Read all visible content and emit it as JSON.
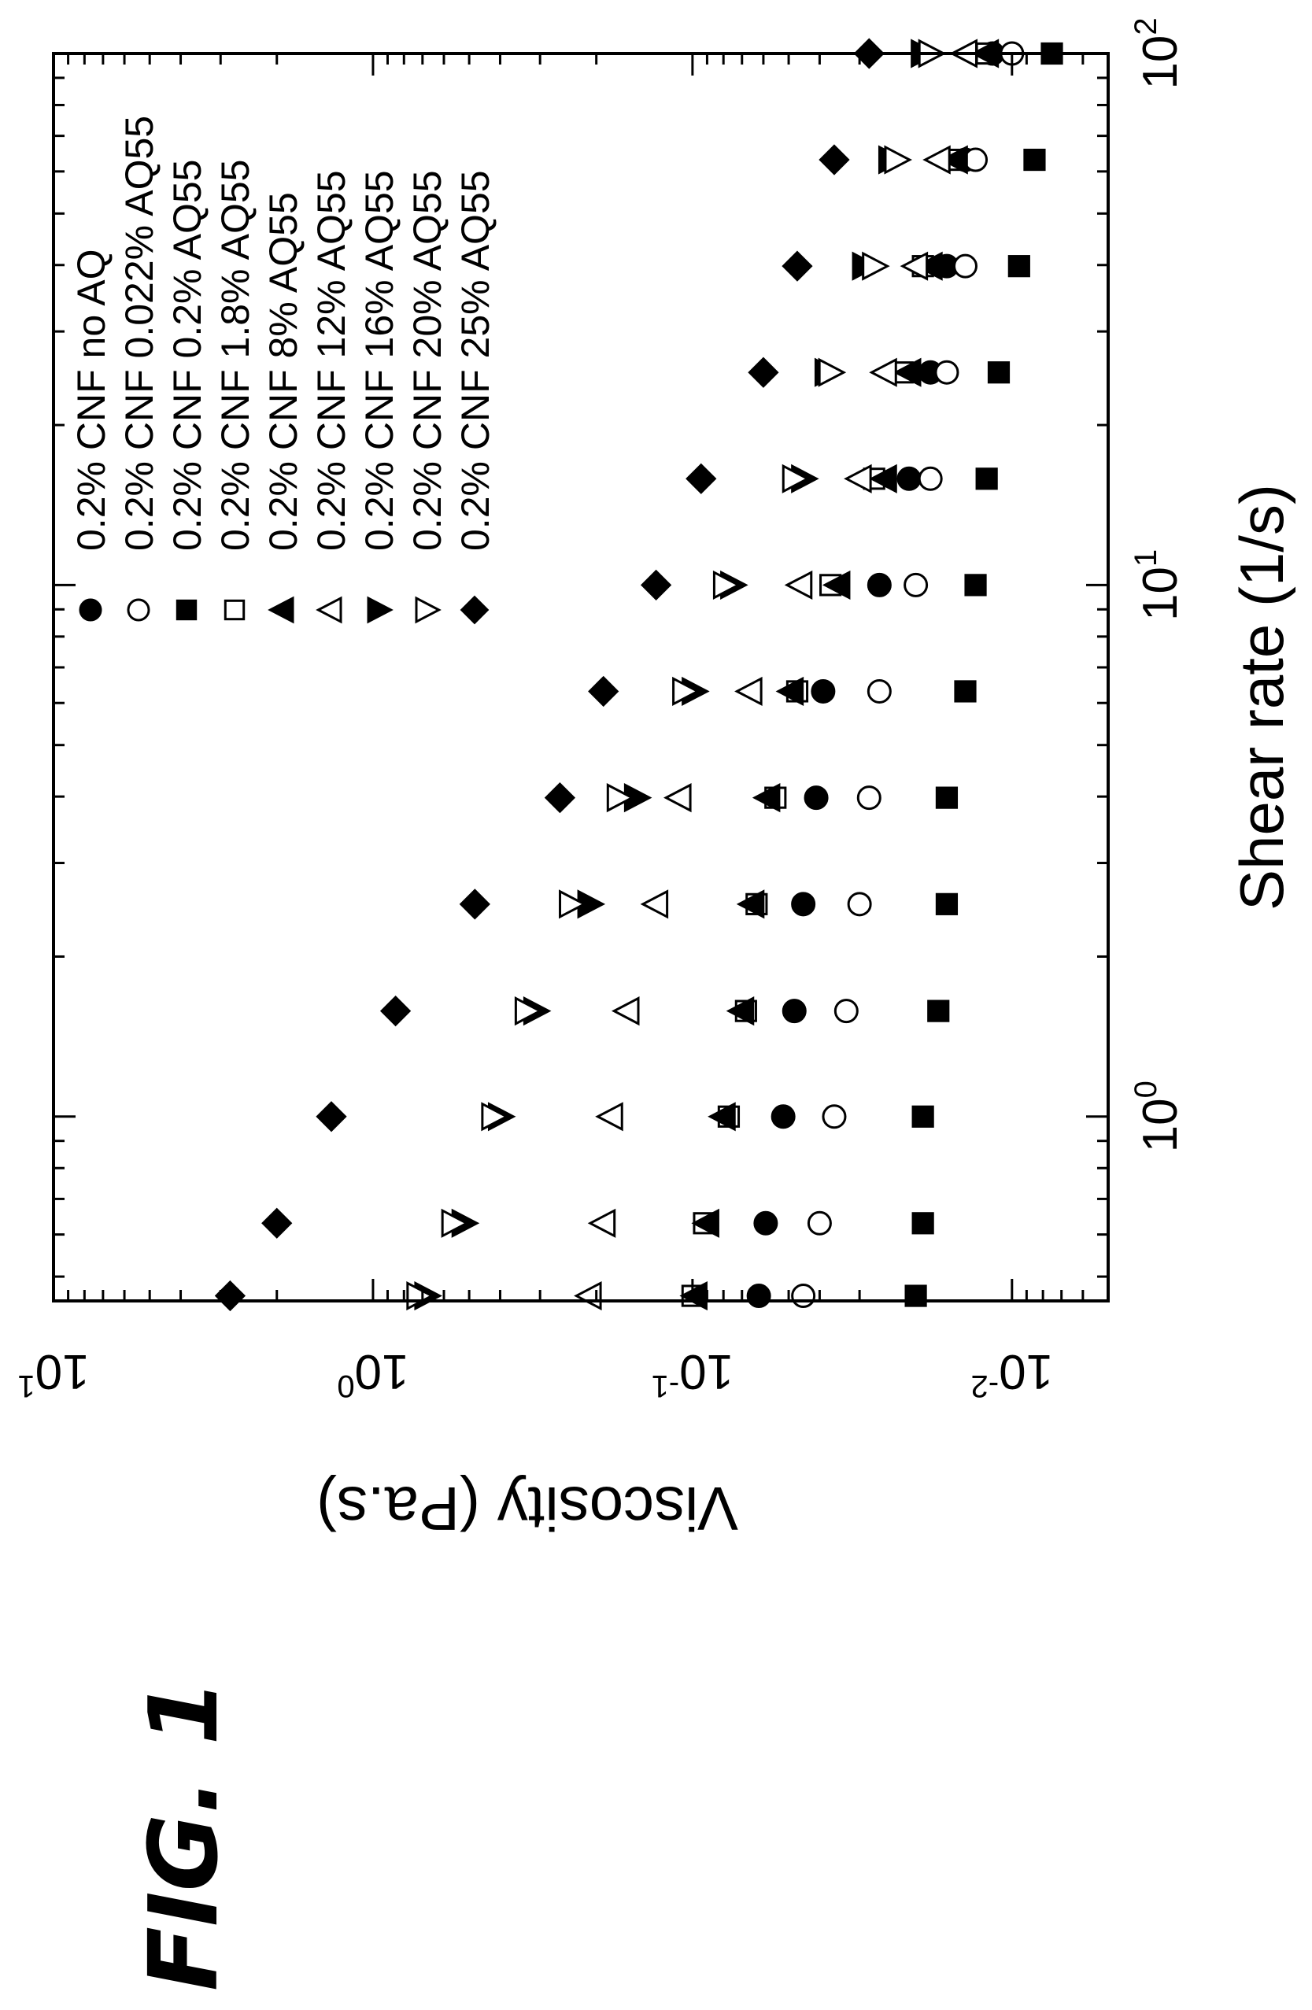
{
  "figure_label": "FIG. 1",
  "chart_data": {
    "type": "scatter",
    "xlabel": "Shear rate (1/s)",
    "ylabel": "Viscosity (Pa.s)",
    "xscale": "log",
    "yscale": "log",
    "xlim": [
      0.45,
      100
    ],
    "ylim": [
      0.005,
      10
    ],
    "x_ticks": [
      {
        "base": "10",
        "exp": "0",
        "value": 1
      },
      {
        "base": "10",
        "exp": "1",
        "value": 10
      },
      {
        "base": "10",
        "exp": "2",
        "value": 100
      }
    ],
    "y_ticks": [
      {
        "base": "10",
        "exp": "1",
        "value": 10
      },
      {
        "base": "10",
        "exp": "0",
        "value": 1
      },
      {
        "base": "10",
        "exp": "-1",
        "value": 0.1
      },
      {
        "base": "10",
        "exp": "-2",
        "value": 0.01
      }
    ],
    "legend_position": "inside plot, upper-left region",
    "x": [
      0.46,
      0.63,
      1.0,
      1.58,
      2.51,
      3.98,
      6.31,
      10,
      15.85,
      25.12,
      39.81,
      63.1,
      100
    ],
    "series": [
      {
        "name": "0.2% CNF no AQ",
        "marker": "filled-circle",
        "values": [
          0.062,
          0.059,
          0.052,
          0.048,
          0.045,
          0.041,
          0.039,
          0.026,
          0.021,
          0.018,
          0.016,
          0.014,
          0.0115
        ]
      },
      {
        "name": "0.2% CNF 0.022% AQ55",
        "marker": "open-circle",
        "values": [
          0.045,
          0.04,
          0.036,
          0.033,
          0.03,
          0.028,
          0.026,
          0.02,
          0.018,
          0.016,
          0.014,
          0.013,
          0.01
        ]
      },
      {
        "name": "0.2% CNF 0.2% AQ55",
        "marker": "filled-square",
        "values": [
          0.02,
          0.019,
          0.019,
          0.017,
          0.016,
          0.016,
          0.014,
          0.013,
          0.012,
          0.011,
          0.0095,
          0.0085,
          0.0075
        ]
      },
      {
        "name": "0.2% CNF 1.8% AQ55",
        "marker": "open-square",
        "values": [
          0.1,
          0.092,
          0.077,
          0.068,
          0.063,
          0.055,
          0.047,
          0.037,
          0.027,
          0.022,
          0.019,
          0.015,
          0.012
        ]
      },
      {
        "name": "0.2% CNF 8% AQ55",
        "marker": "filled-triangle-left",
        "values": [
          0.098,
          0.09,
          0.08,
          0.07,
          0.065,
          0.058,
          0.049,
          0.035,
          0.025,
          0.021,
          0.018,
          0.015,
          0.012
        ]
      },
      {
        "name": "0.2% CNF 12% AQ55",
        "marker": "open-triangle-left",
        "values": [
          0.21,
          0.19,
          0.18,
          0.16,
          0.13,
          0.11,
          0.066,
          0.046,
          0.03,
          0.025,
          0.02,
          0.017,
          0.014
        ]
      },
      {
        "name": "0.2% CNF 16% AQ55",
        "marker": "filled-triangle-right",
        "values": [
          0.68,
          0.52,
          0.4,
          0.31,
          0.21,
          0.15,
          0.099,
          0.075,
          0.045,
          0.038,
          0.029,
          0.024,
          0.019
        ]
      },
      {
        "name": "0.2% CNF 20% AQ55",
        "marker": "open-triangle-right",
        "values": [
          0.72,
          0.56,
          0.42,
          0.33,
          0.24,
          0.17,
          0.106,
          0.079,
          0.048,
          0.037,
          0.027,
          0.023,
          0.018
        ]
      },
      {
        "name": "0.2% CNF 25% AQ55",
        "marker": "filled-diamond",
        "values": [
          2.8,
          2.0,
          1.35,
          0.85,
          0.48,
          0.26,
          0.19,
          0.13,
          0.094,
          0.06,
          0.047,
          0.036,
          0.028
        ]
      }
    ]
  }
}
